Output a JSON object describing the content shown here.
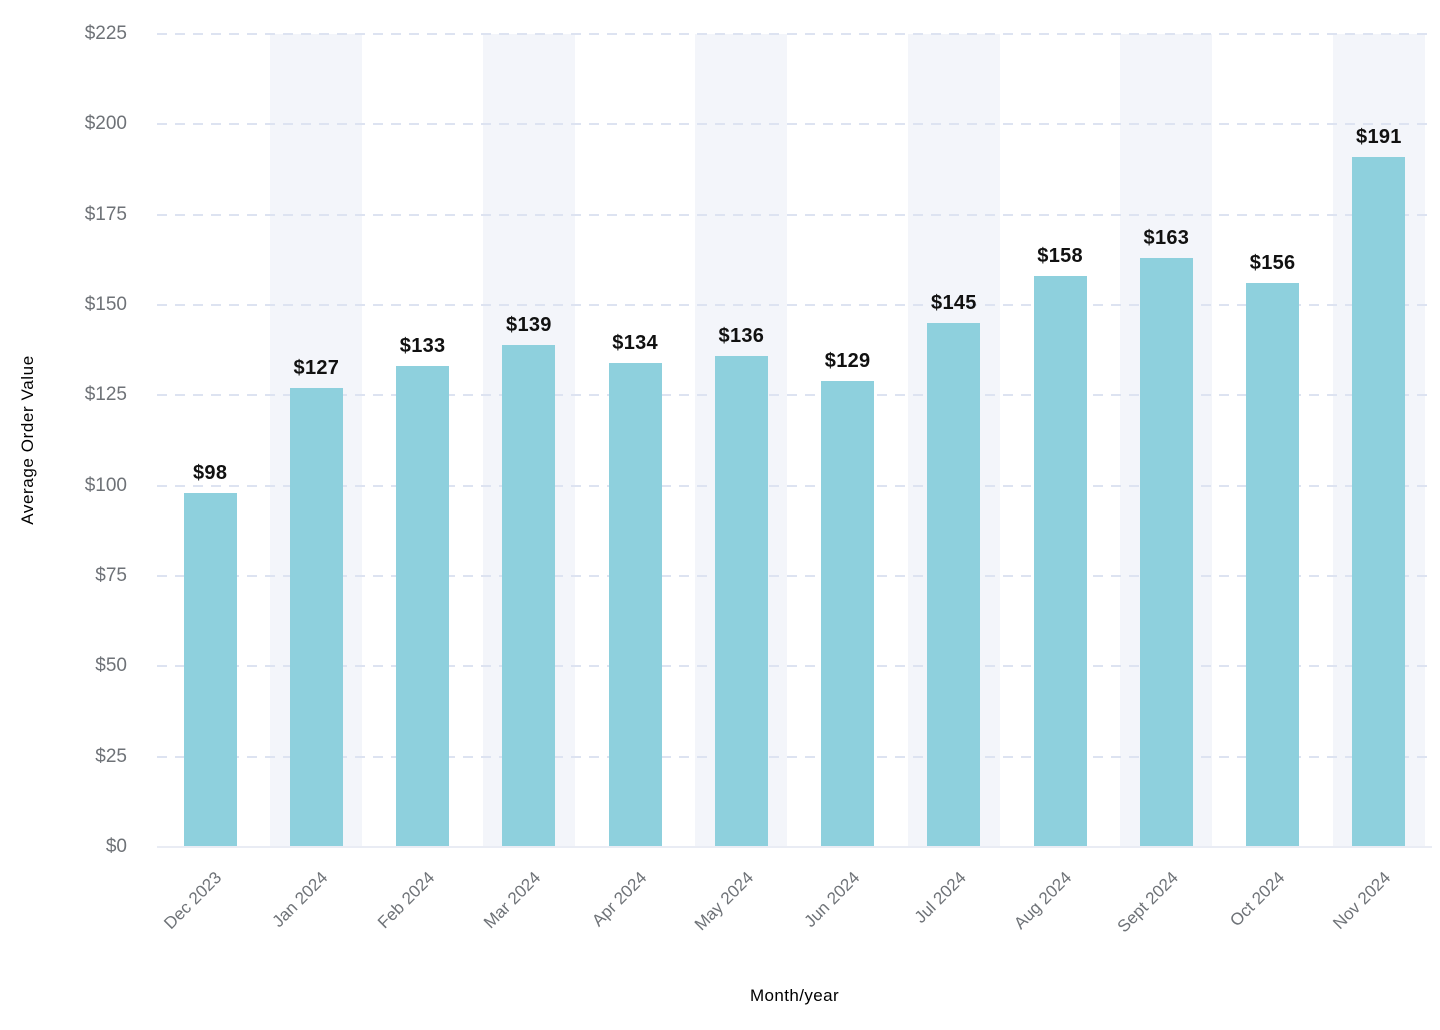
{
  "chart_data": {
    "type": "bar",
    "title": "",
    "xlabel": "Month/year",
    "ylabel": "Average Order Value",
    "categories": [
      "Dec 2023",
      "Jan 2024",
      "Feb 2024",
      "Mar 2024",
      "Apr 2024",
      "May 2024",
      "Jun 2024",
      "Jul 2024",
      "Aug 2024",
      "Sept 2024",
      "Oct 2024",
      "Nov 2024"
    ],
    "values": [
      98,
      127,
      133,
      139,
      134,
      136,
      129,
      145,
      158,
      163,
      156,
      191
    ],
    "value_labels": [
      "$98",
      "$127",
      "$133",
      "$139",
      "$134",
      "$136",
      "$129",
      "$145",
      "$158",
      "$163",
      "$156",
      "$191"
    ],
    "ylim": [
      0,
      225
    ],
    "y_tick_step": 25,
    "y_tick_labels": [
      "$0",
      "$25",
      "$50",
      "$75",
      "$100",
      "$125",
      "$150",
      "$175",
      "$200",
      "$225"
    ],
    "grid": "horizontal-dashed",
    "legend": "none",
    "banded_category_indices": [
      1,
      3,
      5,
      7,
      9,
      11
    ],
    "colors": {
      "bar": "#8ed0dd",
      "band": "#f3f5fa",
      "gridline": "#dde3f1",
      "axis_line": "#e9ecf4",
      "tick_text": "#6e7277",
      "axis_title_text": "#75787d",
      "value_label_text": "#111111"
    }
  }
}
